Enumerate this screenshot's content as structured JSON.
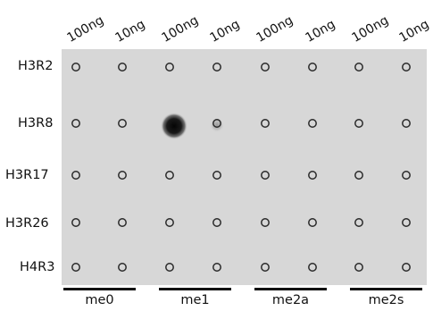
{
  "column_labels": [
    "100ng",
    "10ng",
    "100ng",
    "10ng",
    "100ng",
    "10ng",
    "100ng",
    "10ng"
  ],
  "row_labels": [
    "H3R2",
    "H3R8",
    "H3R17",
    "H3R26",
    "H4R3"
  ],
  "groups": [
    "me0",
    "me1",
    "me2a",
    "me2s"
  ],
  "membrane_color": "#d7d7d7",
  "signals": [
    [
      0,
      0,
      0,
      0,
      0,
      0,
      0,
      0
    ],
    [
      0,
      0,
      1.0,
      0.25,
      0,
      0,
      0,
      0
    ],
    [
      0,
      0,
      0,
      0,
      0,
      0,
      0,
      0
    ],
    [
      0,
      0,
      0,
      0,
      0,
      0,
      0,
      0
    ],
    [
      0,
      0,
      0,
      0,
      0,
      0,
      0,
      0
    ]
  ]
}
